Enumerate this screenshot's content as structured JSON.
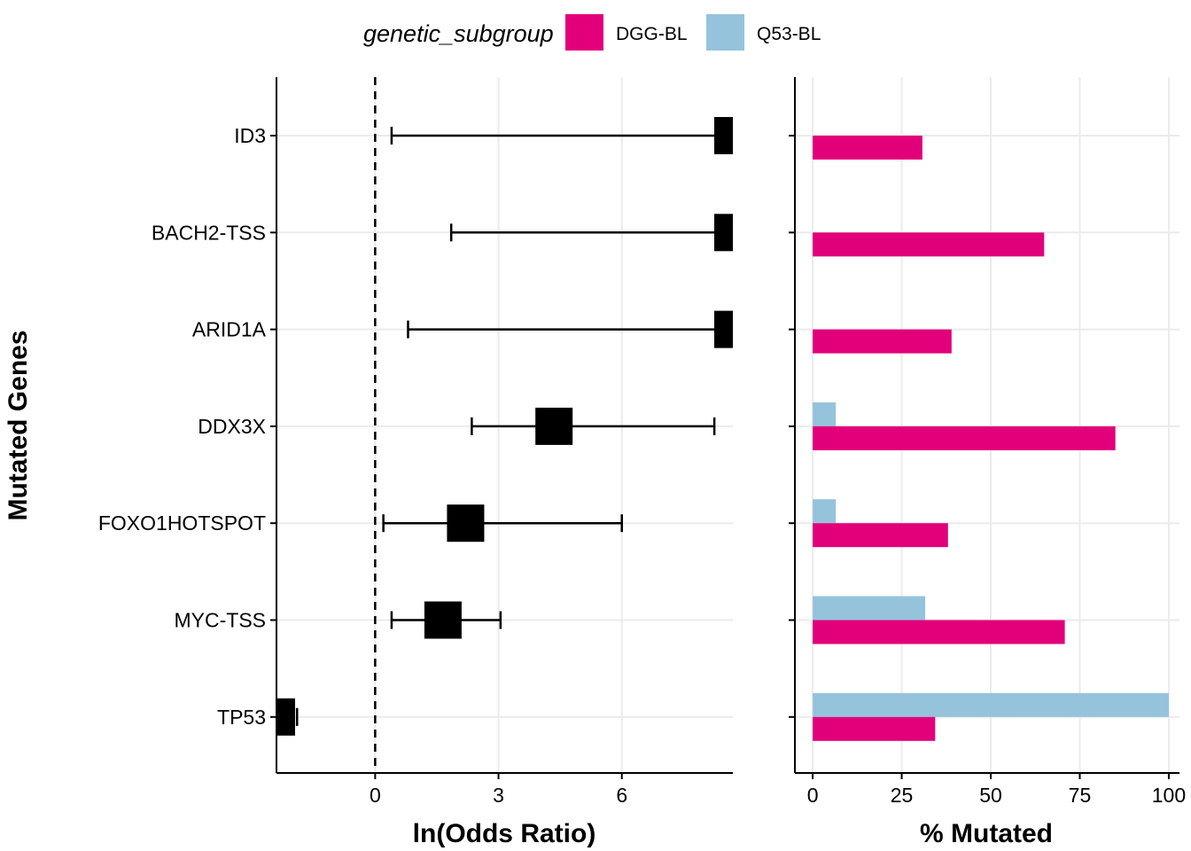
{
  "legend": {
    "title": "genetic_subgroup",
    "items": [
      {
        "label": "DGG-BL",
        "color": "#E2007A"
      },
      {
        "label": "Q53-BL",
        "color": "#95C3DC"
      }
    ]
  },
  "chart_data": [
    {
      "type": "forest",
      "xlabel": "ln(Odds Ratio)",
      "ylabel": "Mutated Genes",
      "xlim": [
        -2.4,
        8.7
      ],
      "xticks": [
        0,
        3,
        6
      ],
      "reference_line": 0,
      "grid": "major vertical and horizontal",
      "categories": [
        "ID3",
        "BACH2-TSS",
        "ARID1A",
        "DDX3X",
        "FOXO1HOTSPOT",
        "MYC-TSS",
        "TP53"
      ],
      "estimate": [
        8.6,
        8.6,
        8.6,
        4.35,
        2.2,
        1.65,
        -2.2
      ],
      "ci_low": [
        0.4,
        1.85,
        0.8,
        2.35,
        0.2,
        0.4,
        -1.9
      ],
      "ci_high": [
        8.6,
        8.6,
        8.6,
        8.25,
        6.0,
        3.05,
        -1.9
      ]
    },
    {
      "type": "bar",
      "orientation": "horizontal",
      "xlabel": "% Mutated",
      "xlim": [
        -5,
        103
      ],
      "xticks": [
        0,
        25,
        50,
        75,
        100
      ],
      "categories": [
        "ID3",
        "BACH2-TSS",
        "ARID1A",
        "DDX3X",
        "FOXO1HOTSPOT",
        "MYC-TSS",
        "TP53"
      ],
      "series": [
        {
          "name": "DGG-BL",
          "color": "#E2007A",
          "values": [
            30.8,
            65.0,
            39.0,
            85.0,
            38.0,
            70.8,
            34.4
          ]
        },
        {
          "name": "Q53-BL",
          "color": "#95C3DC",
          "values": [
            0,
            0,
            0,
            6.5,
            6.5,
            31.6,
            100
          ]
        }
      ]
    }
  ]
}
